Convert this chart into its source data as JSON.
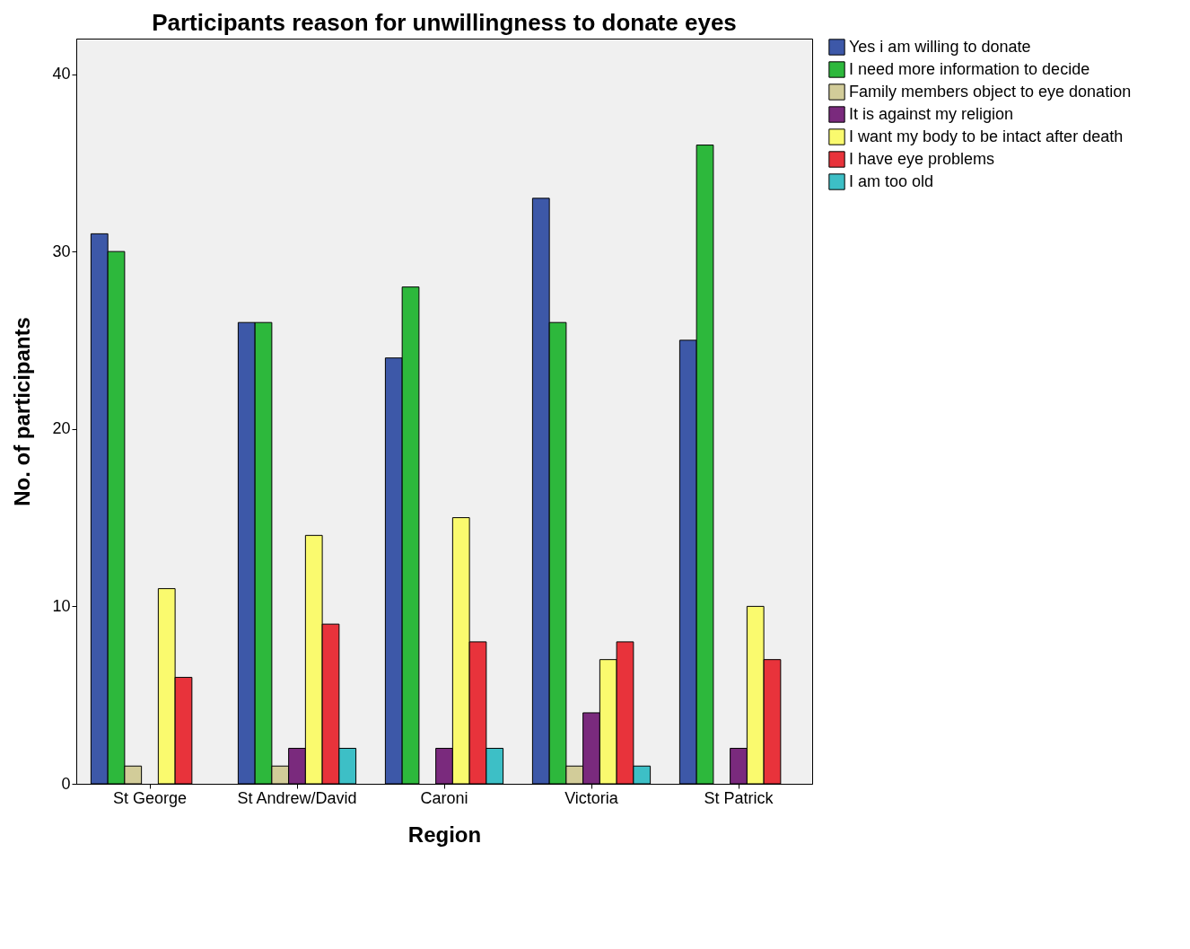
{
  "chart_data": {
    "type": "bar",
    "title": "Participants reason for unwillingness to donate eyes",
    "xlabel": "Region",
    "ylabel": "No. of participants",
    "categories": [
      "St George",
      "St Andrew/David",
      "Caroni",
      "Victoria",
      "St Patrick"
    ],
    "series": [
      {
        "name": "Yes i am willing to donate",
        "color": "#3d58a8",
        "values": [
          31,
          26,
          24,
          33,
          25
        ]
      },
      {
        "name": "I need more information to decide",
        "color": "#2db83c",
        "values": [
          30,
          26,
          28,
          26,
          36
        ]
      },
      {
        "name": "Family members object to eye donation",
        "color": "#d2cc99",
        "values": [
          1,
          1,
          null,
          1,
          null
        ]
      },
      {
        "name": "It is against my religion",
        "color": "#7a2a7d",
        "values": [
          null,
          2,
          2,
          4,
          2
        ]
      },
      {
        "name": "I want my body to be intact after death",
        "color": "#fafa6e",
        "values": [
          11,
          14,
          15,
          7,
          10
        ]
      },
      {
        "name": "I have eye problems",
        "color": "#e8333b",
        "values": [
          6,
          9,
          8,
          8,
          7
        ]
      },
      {
        "name": "I am too old",
        "color": "#3dbfc6",
        "values": [
          null,
          2,
          2,
          1,
          null
        ]
      }
    ],
    "ylim": [
      0,
      42
    ],
    "yticks": [
      0,
      10,
      20,
      30,
      40
    ],
    "grid": false,
    "legend": "right"
  }
}
